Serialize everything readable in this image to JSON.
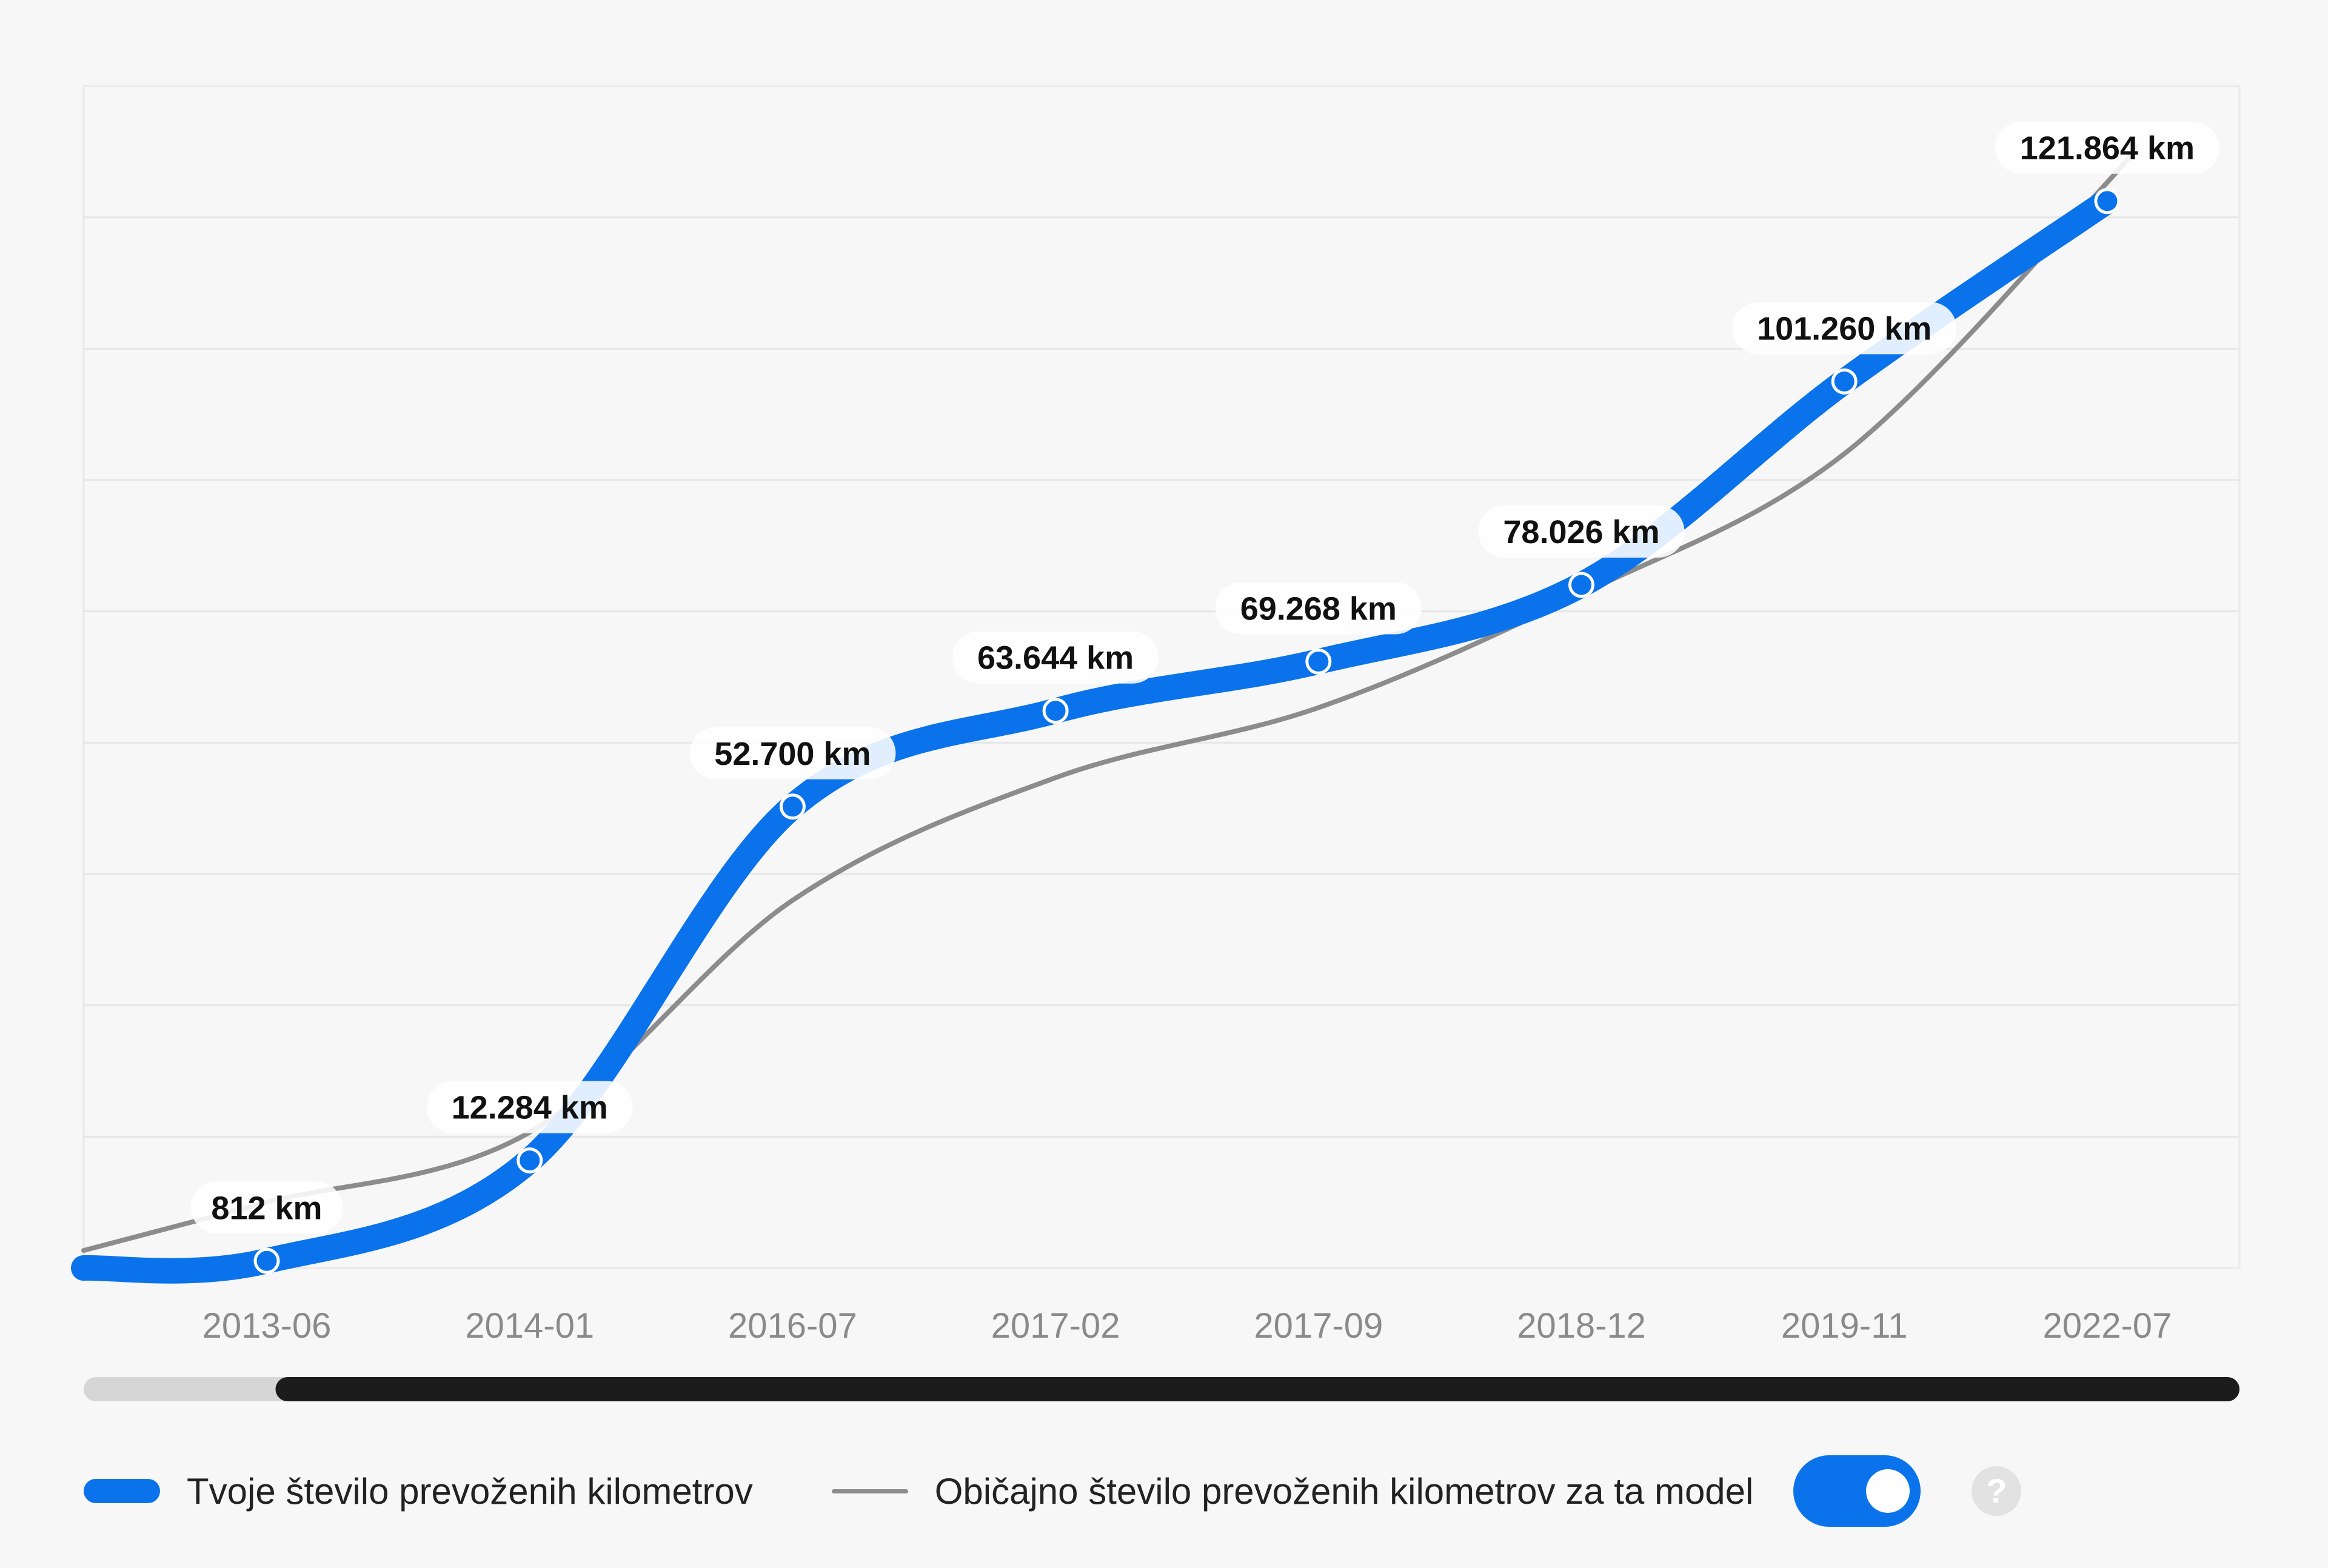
{
  "chart_data": {
    "type": "line",
    "categories": [
      "2013-06",
      "2014-01",
      "2016-07",
      "2017-02",
      "2017-09",
      "2018-12",
      "2019-11",
      "2022-07"
    ],
    "ylim": [
      0,
      135000
    ],
    "grid": true,
    "legend_position": "bottom",
    "series": [
      {
        "name": "Tvoje število prevoženih kilometrov",
        "color": "#0a73ec",
        "values": [
          812,
          12284,
          52700,
          63644,
          69268,
          78026,
          101260,
          121864
        ],
        "labels": [
          "812 km",
          "12.284 km",
          "52.700 km",
          "63.644 km",
          "69.268 km",
          "78.026 km",
          "101.260 km",
          "121.864 km"
        ]
      },
      {
        "name": "Običajno število prevoženih kilometrov za ta model",
        "color": "#8c8c8c",
        "values": [
          7500,
          15500,
          42000,
          56000,
          64000,
          77000,
          93000,
          124000
        ]
      }
    ]
  },
  "legend": {
    "series1_label": "Tvoje število prevoženih kilometrov",
    "series2_label": "Običajno število prevoženih kilometrov za ta model",
    "help_icon": "question-icon",
    "help_glyph": "?"
  },
  "toggle": {
    "state": "on"
  },
  "scrollbar": {
    "start_fraction": 0.089,
    "end_fraction": 1.0
  }
}
